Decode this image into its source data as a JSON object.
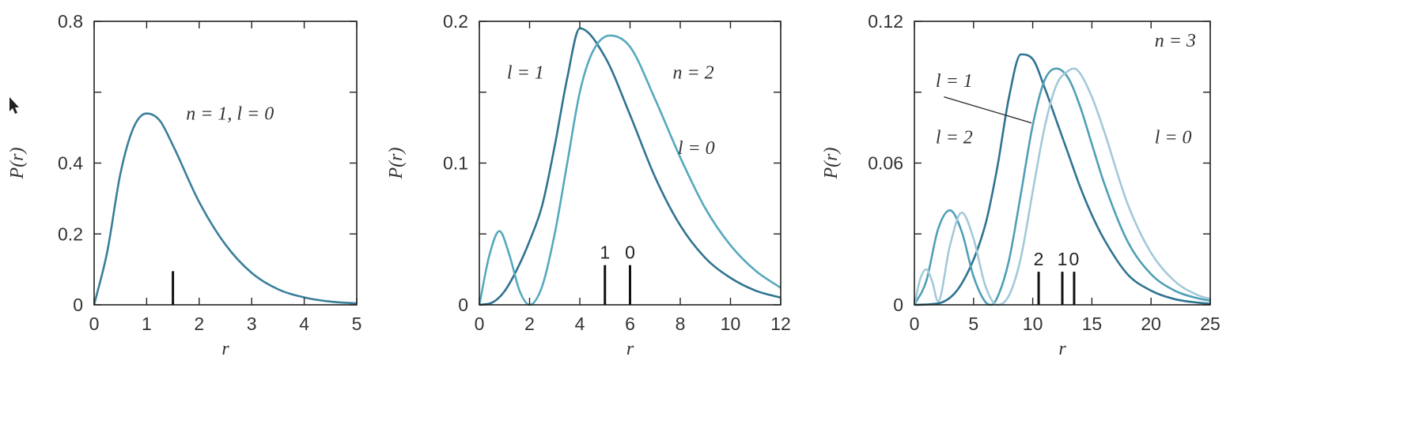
{
  "chart_data": [
    {
      "type": "line",
      "xlabel": "r",
      "ylabel": "P(r)",
      "xlim": [
        0,
        5
      ],
      "ylim": [
        0,
        0.8
      ],
      "xticks": [
        "0",
        "1",
        "2",
        "3",
        "4",
        "5"
      ],
      "yticks": [
        "0",
        "0.2",
        "0.4",
        "0.6",
        "0.8"
      ],
      "ytick_labels_shown": [
        "0",
        "0.2",
        "0.4",
        "0.8"
      ],
      "series": [
        {
          "color": "#3a7f9a",
          "x": [
            0,
            0.25,
            0.5,
            0.75,
            1,
            1.25,
            1.5,
            2,
            2.5,
            3,
            3.5,
            4,
            4.5,
            5
          ],
          "y": [
            0,
            0.15,
            0.37,
            0.5,
            0.54,
            0.52,
            0.45,
            0.29,
            0.17,
            0.09,
            0.044,
            0.021,
            0.009,
            0.004
          ]
        }
      ],
      "annotations": [
        {
          "text": "n = 1, l = 0",
          "x": 1.75,
          "y": 0.54
        }
      ],
      "markers": [
        {
          "label": "",
          "x": 1.5,
          "height": 0.095
        }
      ]
    },
    {
      "type": "line",
      "xlabel": "r",
      "ylabel": "P(r)",
      "xlim": [
        0,
        12
      ],
      "ylim": [
        0,
        0.2
      ],
      "xticks": [
        "0",
        "2",
        "4",
        "6",
        "8",
        "10",
        "12"
      ],
      "yticks": [
        "0",
        "0.05",
        "0.1",
        "0.15",
        "0.2"
      ],
      "ytick_labels_shown": [
        "0",
        "0.1",
        "0.2"
      ],
      "series": [
        {
          "color": "#2f7391",
          "x": [
            0,
            0.5,
            1,
            1.5,
            2,
            2.5,
            3,
            3.5,
            4,
            5,
            6,
            7,
            8,
            9,
            10,
            11,
            12
          ],
          "y": [
            0,
            0.0015,
            0.0095,
            0.025,
            0.045,
            0.07,
            0.112,
            0.16,
            0.195,
            0.175,
            0.134,
            0.09,
            0.056,
            0.033,
            0.019,
            0.01,
            0.005
          ]
        },
        {
          "color": "#55a9bd",
          "x": [
            0,
            0.4,
            0.8,
            1.2,
            1.6,
            2,
            2.5,
            3,
            3.5,
            4,
            4.5,
            5.2,
            6,
            7,
            8,
            9,
            10,
            11,
            12
          ],
          "y": [
            0,
            0.035,
            0.052,
            0.035,
            0.01,
            0,
            0.013,
            0.05,
            0.1,
            0.15,
            0.178,
            0.19,
            0.182,
            0.145,
            0.104,
            0.068,
            0.042,
            0.024,
            0.012
          ]
        }
      ],
      "annotations": [
        {
          "text": "l = 1",
          "x": 1.1,
          "y": 0.164
        },
        {
          "text": "n = 2",
          "x": 7.7,
          "y": 0.164
        },
        {
          "text": "l = 0",
          "x": 7.9,
          "y": 0.111
        }
      ],
      "markers": [
        {
          "label": "1",
          "x": 5,
          "height": 0.028
        },
        {
          "label": "0",
          "x": 6,
          "height": 0.028
        }
      ]
    },
    {
      "type": "line",
      "xlabel": "r",
      "ylabel": "P(r)",
      "xlim": [
        0,
        25
      ],
      "ylim": [
        0,
        0.12
      ],
      "xticks": [
        "0",
        "5",
        "10",
        "15",
        "20",
        "25"
      ],
      "yticks": [
        "0",
        "0.03",
        "0.06",
        "0.09",
        "0.12"
      ],
      "ytick_labels_shown": [
        "0",
        "0.06",
        "0.12"
      ],
      "series": [
        {
          "color": "#2f7391",
          "x": [
            0,
            2,
            4,
            6,
            7,
            8,
            9,
            10,
            11,
            12,
            13,
            14,
            15,
            16,
            18,
            20,
            22,
            24,
            25
          ],
          "y": [
            0,
            0.0006,
            0.009,
            0.034,
            0.058,
            0.088,
            0.106,
            0.104,
            0.092,
            0.078,
            0.064,
            0.05,
            0.038,
            0.028,
            0.013,
            0.006,
            0.0024,
            0.0009,
            0.0005
          ]
        },
        {
          "color": "#4f9fb6",
          "x": [
            0,
            1,
            2,
            3,
            4,
            5,
            6,
            6.5,
            7,
            8,
            9,
            10,
            11,
            12,
            13,
            14,
            15,
            16,
            18,
            20,
            22,
            24,
            25
          ],
          "y": [
            0,
            0.01,
            0.032,
            0.04,
            0.031,
            0.012,
            0.0012,
            0,
            0.003,
            0.019,
            0.047,
            0.076,
            0.095,
            0.1,
            0.096,
            0.084,
            0.068,
            0.052,
            0.027,
            0.013,
            0.006,
            0.0027,
            0.0017
          ]
        },
        {
          "color": "#a3c9d8",
          "x": [
            0,
            0.5,
            1,
            1.5,
            2,
            3,
            4,
            5,
            6,
            7,
            8,
            9,
            10,
            11,
            12,
            13,
            13.5,
            14,
            15,
            16,
            18,
            20,
            22,
            24,
            25
          ],
          "y": [
            0,
            0.011,
            0.015,
            0.01,
            0.0015,
            0.025,
            0.039,
            0.028,
            0.008,
            0,
            0.004,
            0.02,
            0.048,
            0.075,
            0.093,
            0.099,
            0.1,
            0.098,
            0.088,
            0.074,
            0.043,
            0.022,
            0.01,
            0.004,
            0.0025
          ]
        }
      ],
      "annotations": [
        {
          "text": "n = 3",
          "x": 20.3,
          "y": 0.112
        },
        {
          "text": "l = 1",
          "x": 1.8,
          "y": 0.095
        },
        {
          "text": "l = 2",
          "x": 1.8,
          "y": 0.071
        },
        {
          "text": "l = 0",
          "x": 20.3,
          "y": 0.071
        }
      ],
      "markers": [
        {
          "label": "2",
          "x": 10.5,
          "height": 0.014
        },
        {
          "label": "1",
          "x": 12.5,
          "height": 0.014
        },
        {
          "label": "0",
          "x": 13.5,
          "height": 0.014
        }
      ]
    }
  ]
}
